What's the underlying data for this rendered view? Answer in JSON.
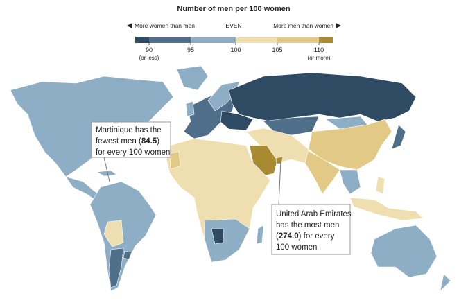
{
  "title": "Number of men per 100 women",
  "legend": {
    "left_label": "More women than men",
    "center_label": "EVEN",
    "right_label": "More men than women",
    "bins": [
      {
        "color": "#2f4b64"
      },
      {
        "color": "#4f6e8a"
      },
      {
        "color": "#8eaec6"
      },
      {
        "color": "#efdfb0"
      },
      {
        "color": "#e2c985"
      },
      {
        "color": "#a88a30"
      }
    ],
    "ticks": [
      {
        "value": 90,
        "label": "90",
        "sublabel": "(or less)"
      },
      95,
      100,
      105,
      {
        "value": 110,
        "label": "110",
        "sublabel": "(or more)"
      }
    ]
  },
  "annotations": [
    {
      "lines": [
        [
          {
            "t": "Martinique has the"
          }
        ],
        [
          {
            "t": "fewest men ("
          },
          {
            "t": "84.5",
            "bold": true
          },
          {
            "t": ")"
          }
        ],
        [
          {
            "t": "for every 100 women"
          }
        ]
      ]
    },
    {
      "lines": [
        [
          {
            "t": "United Arab Emirates"
          }
        ],
        [
          {
            "t": "has the most men"
          }
        ],
        [
          {
            "t": "("
          },
          {
            "t": "274.0",
            "bold": true
          },
          {
            "t": ") for every"
          }
        ],
        [
          {
            "t": "100 women"
          }
        ]
      ]
    }
  ]
}
